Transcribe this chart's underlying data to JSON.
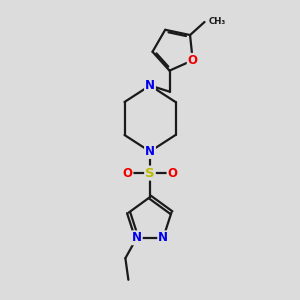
{
  "bg_color": "#dcdcdc",
  "bond_color": "#1a1a1a",
  "bond_width": 1.6,
  "atom_colors": {
    "N": "#0000ee",
    "O": "#ee0000",
    "S": "#bbbb00",
    "C": "#1a1a1a"
  },
  "font_size_atom": 8.5
}
